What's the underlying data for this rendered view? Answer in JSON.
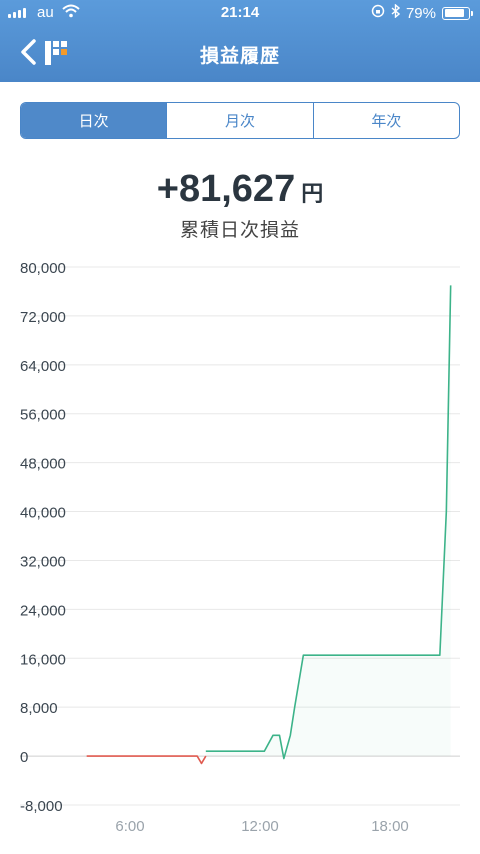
{
  "status_bar": {
    "carrier": "au",
    "time": "21:14",
    "battery": "79%"
  },
  "nav": {
    "title": "損益履歴",
    "back_icon": "chevron-left-icon",
    "logo_icon": "app-logo-icon"
  },
  "tabs": [
    {
      "label": "日次",
      "active": true
    },
    {
      "label": "月次",
      "active": false
    },
    {
      "label": "年次",
      "active": false
    }
  ],
  "summary": {
    "value": "+81,627",
    "unit": "円",
    "label": "累積日次損益"
  },
  "colors": {
    "header": "#4a86c8",
    "positive": "#3cb389",
    "negative": "#e05a4f",
    "grid": "#e8e8e8"
  },
  "chart_data": {
    "type": "line",
    "y_ticks": [
      "80,000",
      "72,000",
      "64,000",
      "56,000",
      "48,000",
      "40,000",
      "32,000",
      "24,000",
      "16,000",
      "8,000",
      "0",
      "-8,000"
    ],
    "x_ticks": [
      "6:00",
      "12:00",
      "18:00"
    ],
    "ylim": [
      -8000,
      80000
    ],
    "xlim": [
      4.0,
      20.8
    ],
    "grid": true,
    "series": [
      {
        "color": "#e05a4f",
        "points": [
          [
            4.0,
            0
          ],
          [
            9.1,
            0
          ],
          [
            9.3,
            -1200
          ],
          [
            9.5,
            0
          ]
        ]
      },
      {
        "color": "#3cb389",
        "points": [
          [
            9.5,
            800
          ],
          [
            12.2,
            800
          ],
          [
            12.6,
            3400
          ],
          [
            12.9,
            3400
          ],
          [
            13.1,
            -400
          ],
          [
            13.4,
            3400
          ],
          [
            13.6,
            8000
          ],
          [
            14.0,
            16500
          ],
          [
            20.3,
            16500
          ],
          [
            20.6,
            40000
          ],
          [
            20.8,
            77000
          ]
        ]
      }
    ]
  }
}
